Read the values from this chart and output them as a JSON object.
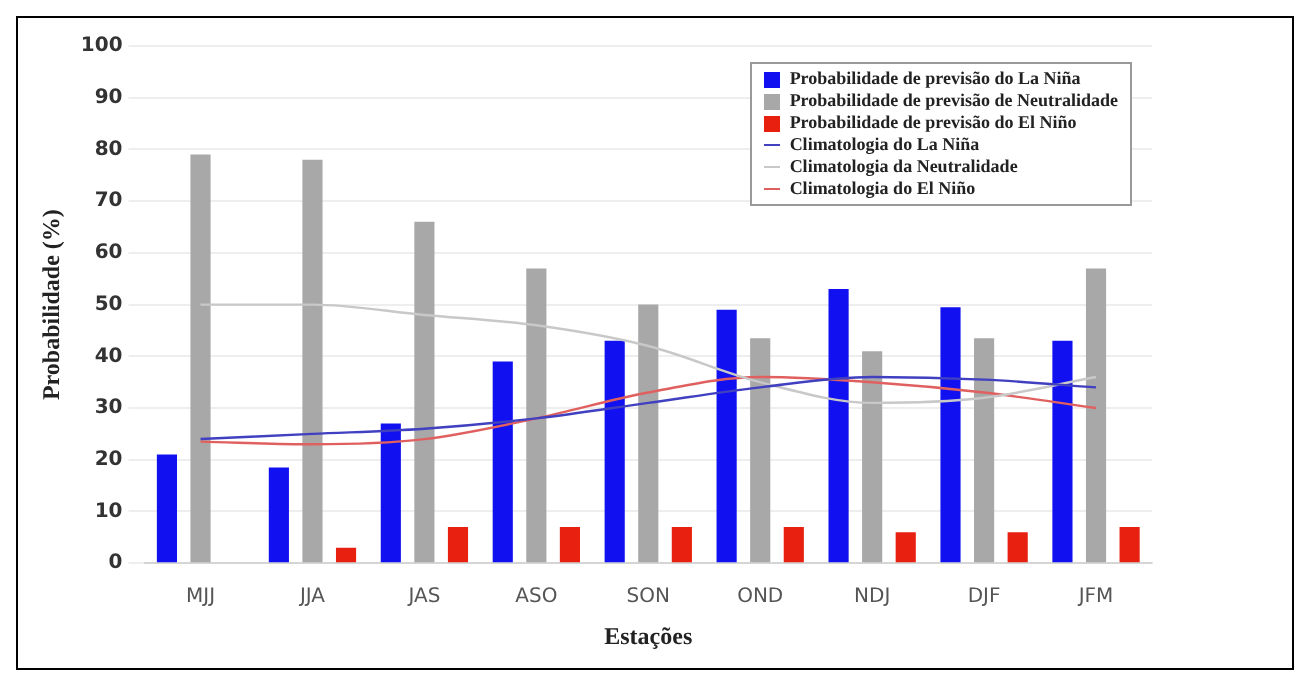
{
  "chart_data": {
    "type": "bar",
    "xlabel": "Estações",
    "ylabel": "Probabilidade (%)",
    "categories": [
      "MJJ",
      "JJA",
      "JAS",
      "ASO",
      "SON",
      "OND",
      "NDJ",
      "DJF",
      "JFM"
    ],
    "series": [
      {
        "name": "Probabilidade de previsão do La Niña",
        "color": "#1010f0",
        "values": [
          21,
          18.5,
          27,
          39,
          43,
          49,
          53,
          49.5,
          43
        ]
      },
      {
        "name": "Probabilidade de previsão de Neutralidade",
        "color": "#a8a8a8",
        "values": [
          79,
          78,
          66,
          57,
          50,
          43.5,
          41,
          43.5,
          57
        ]
      },
      {
        "name": "Probabilidade de previsão do El Niño",
        "color": "#e82010",
        "values": [
          0,
          3,
          7,
          7,
          7,
          7,
          6,
          6,
          7
        ]
      },
      {
        "name": "Climatologia do La Niña",
        "type": "line",
        "color": "#4040c0",
        "values": [
          24,
          25,
          26,
          28,
          31,
          34,
          36,
          35.5,
          34
        ]
      },
      {
        "name": "Climatologia da Neutralidade",
        "type": "line",
        "color": "#c8c8c8",
        "values": [
          50,
          50,
          48,
          46,
          42,
          35,
          31,
          32,
          36
        ]
      },
      {
        "name": "Climatologia do El Niño",
        "type": "line",
        "color": "#e06060",
        "values": [
          23.5,
          23,
          24,
          28,
          33,
          36,
          35,
          33,
          30
        ]
      }
    ],
    "ylim": [
      0,
      100
    ],
    "yticks": [
      0,
      10,
      20,
      30,
      40,
      50,
      60,
      70,
      80,
      90,
      100
    ],
    "grid": "y",
    "legend": "top right",
    "marker": "none"
  }
}
